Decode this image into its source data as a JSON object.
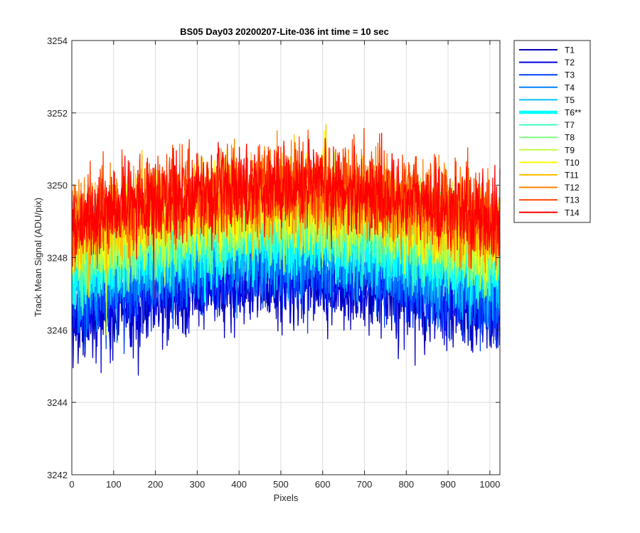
{
  "chart_data": {
    "type": "line",
    "title": "BS05 Day03 20200207-Lite-036 int time = 10 sec",
    "xlabel": "Pixels",
    "ylabel": "Track Mean Signal (ADU/pix)",
    "xlim": [
      0,
      1024
    ],
    "ylim": [
      3242,
      3254
    ],
    "xticks": [
      0,
      100,
      200,
      300,
      400,
      500,
      600,
      700,
      800,
      900,
      1000
    ],
    "yticks": [
      3242,
      3244,
      3246,
      3248,
      3250,
      3252,
      3254
    ],
    "grid": true,
    "legend_position": "outside-top-right",
    "n_pixels": 1024,
    "series": [
      {
        "name": "T1",
        "color": "#0000b3",
        "base": 3246.9,
        "noise": 0.55,
        "bold": false
      },
      {
        "name": "T2",
        "color": "#0000e6",
        "base": 3247.1,
        "noise": 0.55,
        "bold": false
      },
      {
        "name": "T3",
        "color": "#0040ff",
        "base": 3247.4,
        "noise": 0.55,
        "bold": false
      },
      {
        "name": "T4",
        "color": "#0080ff",
        "base": 3247.7,
        "noise": 0.55,
        "bold": false
      },
      {
        "name": "T5",
        "color": "#00c0ff",
        "base": 3248.0,
        "noise": 0.55,
        "bold": false
      },
      {
        "name": "T6**",
        "color": "#00ffff",
        "base": 3248.3,
        "noise": 0.55,
        "bold": true
      },
      {
        "name": "T7",
        "color": "#40ffc0",
        "base": 3248.5,
        "noise": 0.55,
        "bold": false
      },
      {
        "name": "T8",
        "color": "#80ff80",
        "base": 3248.7,
        "noise": 0.55,
        "bold": false
      },
      {
        "name": "T9",
        "color": "#c0ff40",
        "base": 3248.9,
        "noise": 0.55,
        "bold": false
      },
      {
        "name": "T10",
        "color": "#ffff00",
        "base": 3249.1,
        "noise": 0.55,
        "bold": false
      },
      {
        "name": "T11",
        "color": "#ffc000",
        "base": 3249.3,
        "noise": 0.55,
        "bold": false
      },
      {
        "name": "T12",
        "color": "#ff8000",
        "base": 3249.5,
        "noise": 0.55,
        "bold": false
      },
      {
        "name": "T13",
        "color": "#ff4000",
        "base": 3249.7,
        "noise": 0.6,
        "bold": false
      },
      {
        "name": "T14",
        "color": "#ff0000",
        "base": 3249.6,
        "noise": 0.55,
        "bold": false
      }
    ],
    "bow_amplitude": 1.0
  }
}
